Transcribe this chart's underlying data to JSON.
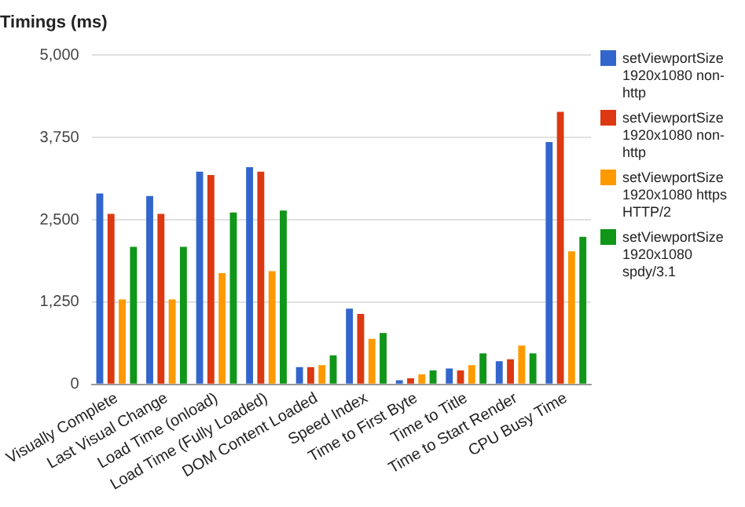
{
  "chart_data": {
    "type": "bar",
    "title": "Timings (ms)",
    "categories": [
      "Visually Complete",
      "Last Visual Change",
      "Load Time (onload)",
      "Load Time (Fully Loaded)",
      "DOM Content Loaded",
      "Speed Index",
      "Time to First Byte",
      "Time to Title",
      "Time to Start Render",
      "CPU Busy Time"
    ],
    "series": [
      {
        "name": "setViewportSize 1920x1080 non-http",
        "color": "#3366cc",
        "values": [
          2900,
          2860,
          3230,
          3300,
          260,
          1150,
          60,
          240,
          350,
          3680
        ]
      },
      {
        "name": "setViewportSize 1920x1080 non-http",
        "color": "#dc3912",
        "values": [
          2590,
          2590,
          3180,
          3230,
          260,
          1070,
          90,
          210,
          380,
          4140
        ]
      },
      {
        "name": "setViewportSize 1920x1080 https HTTP/2",
        "color": "#ff9900",
        "values": [
          1290,
          1290,
          1690,
          1720,
          290,
          690,
          150,
          290,
          590,
          2020
        ]
      },
      {
        "name": "setViewportSize 1920x1080 spdy/3.1",
        "color": "#109618",
        "values": [
          2090,
          2090,
          2610,
          2640,
          440,
          780,
          210,
          470,
          470,
          2240
        ]
      }
    ],
    "ylim": [
      0,
      5000
    ],
    "yticks": [
      {
        "value": 0,
        "label": "0"
      },
      {
        "value": 1250,
        "label": "1,250"
      },
      {
        "value": 2500,
        "label": "2,500"
      },
      {
        "value": 3750,
        "label": "3,750"
      },
      {
        "value": 5000,
        "label": "5,000"
      }
    ],
    "grid": "y",
    "legend": "right"
  }
}
